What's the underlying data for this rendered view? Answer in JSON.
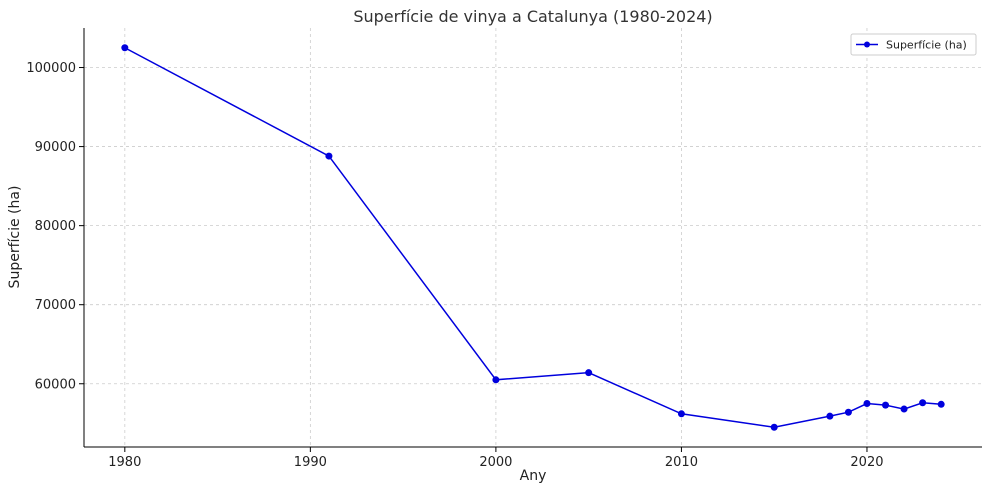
{
  "chart_data": {
    "type": "line",
    "title": "Superfície de vinya a Catalunya (1980-2024)",
    "xlabel": "Any",
    "ylabel": "Superfície (ha)",
    "xlim": [
      1977.8,
      2026.2
    ],
    "ylim": [
      52000,
      105000
    ],
    "xticks": [
      1980,
      1990,
      2000,
      2010,
      2020
    ],
    "yticks": [
      60000,
      70000,
      80000,
      90000,
      100000
    ],
    "grid": true,
    "legend_position": "top-right",
    "series": [
      {
        "name": "Superfície (ha)",
        "color": "#0000dd",
        "x": [
          1980,
          1991,
          2000,
          2005,
          2010,
          2015,
          2018,
          2019,
          2020,
          2021,
          2022,
          2023,
          2024
        ],
        "y": [
          102500,
          88800,
          60500,
          61400,
          56200,
          54500,
          55900,
          56400,
          57500,
          57300,
          56800,
          57600,
          57400
        ]
      }
    ]
  }
}
